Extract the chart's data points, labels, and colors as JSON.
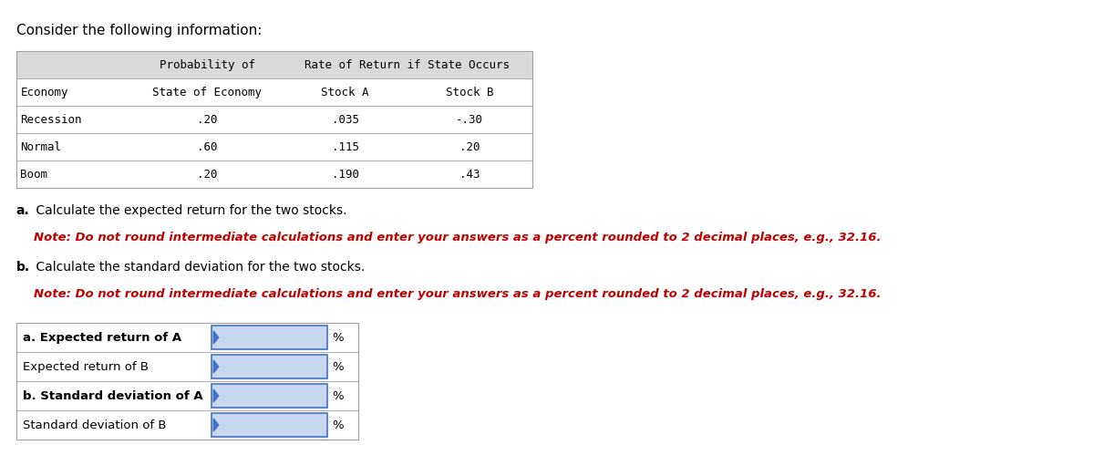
{
  "title": "Consider the following information:",
  "table1_header_row1": [
    "",
    "Probability of",
    "Rate of Return if State Occurs",
    ""
  ],
  "table1_header_row2": [
    "Economy",
    "State of Economy",
    "Stock A",
    "Stock B"
  ],
  "table1_rows": [
    [
      "Recession",
      ".20",
      ".035",
      "-.30"
    ],
    [
      "Normal",
      ".60",
      ".115",
      ".20"
    ],
    [
      "Boom",
      ".20",
      ".190",
      ".43"
    ]
  ],
  "part_a_label": "a.",
  "part_a_text": " Calculate the expected return for the two stocks.",
  "part_a_note_bold": "Note: Do not round intermediate calculations and enter your answers as a percent rounded to 2 decimal places, e.g., 32.16.",
  "part_b_label": "b.",
  "part_b_text": " Calculate the standard deviation for the two stocks.",
  "part_b_note_bold": "Note: Do not round intermediate calculations and enter your answers as a percent rounded to 2 decimal places, e.g., 32.16.",
  "answer_rows": [
    {
      "label": "a. Expected return of A",
      "bold": true
    },
    {
      "label": "Expected return of B",
      "bold": false
    },
    {
      "label": "b. Standard deviation of A",
      "bold": true
    },
    {
      "label": "Standard deviation of B",
      "bold": false
    }
  ],
  "bg_color": "#ffffff",
  "table_header_bg": "#d9d9d9",
  "table_border_color": "#a0a0a0",
  "input_box_color": "#c8d8f0",
  "input_border_color": "#4472c4",
  "note_color": "#c00000",
  "text_color": "#000000",
  "mono_font": "DejaVu Sans Mono",
  "sans_font": "DejaVu Sans"
}
